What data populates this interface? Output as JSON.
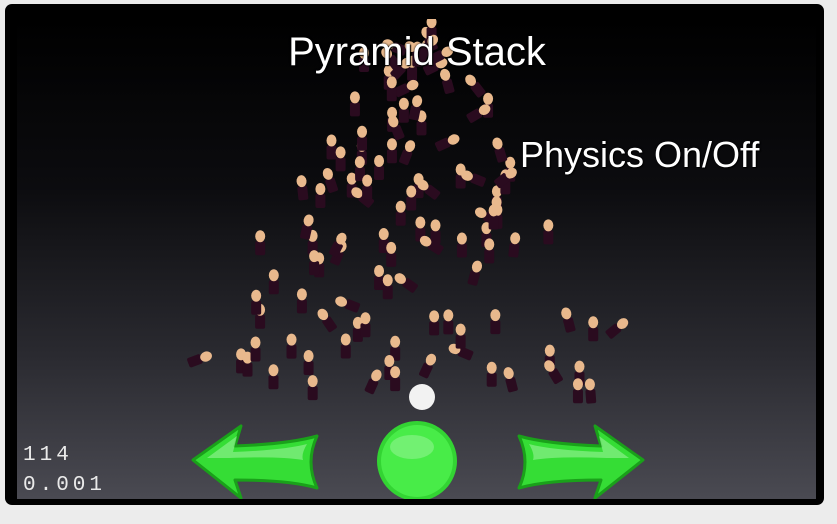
{
  "game": {
    "title": "Pyramid Stack",
    "physics_toggle_label": "Physics On/Off",
    "stats": {
      "count": "114",
      "timer": "0.001"
    },
    "controls": {
      "left_arrow_icon": "arrow-left-icon",
      "center_button_icon": "circle-button-icon",
      "right_arrow_icon": "arrow-right-icon",
      "accent_color": "#3fe83f"
    },
    "colors": {
      "body": "#2a0b1f",
      "head": "#e9b98d",
      "ball": "#f2f2f2"
    }
  }
}
